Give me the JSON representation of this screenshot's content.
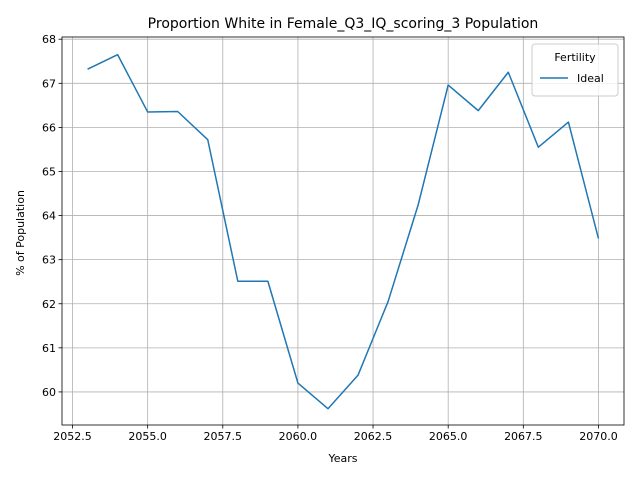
{
  "chart_data": {
    "type": "line",
    "title": "Proportion White in Female_Q3_IQ_scoring_3 Population",
    "xlabel": "Years",
    "ylabel": "% of Population",
    "xlim": [
      2052.15,
      2070.85
    ],
    "ylim": [
      59.25,
      68.05
    ],
    "xticks": [
      2052.5,
      2055.0,
      2057.5,
      2060.0,
      2062.5,
      2065.0,
      2067.5,
      2070.0
    ],
    "xtick_labels": [
      "2052.5",
      "2055.0",
      "2057.5",
      "2060.0",
      "2062.5",
      "2065.0",
      "2067.5",
      "2070.0"
    ],
    "yticks": [
      60,
      61,
      62,
      63,
      64,
      65,
      66,
      67,
      68
    ],
    "ytick_labels": [
      "60",
      "61",
      "62",
      "63",
      "64",
      "65",
      "66",
      "67",
      "68"
    ],
    "grid": true,
    "legend": {
      "title": "Fertility",
      "position": "top-right"
    },
    "series": [
      {
        "name": "Ideal",
        "color": "#1f77b4",
        "x": [
          2053,
          2054,
          2055,
          2056,
          2057,
          2058,
          2059,
          2060,
          2061,
          2062,
          2063,
          2064,
          2065,
          2066,
          2067,
          2068,
          2069,
          2070
        ],
        "y": [
          67.32,
          67.65,
          66.35,
          66.36,
          65.72,
          62.51,
          62.51,
          60.2,
          59.62,
          60.38,
          62.05,
          64.24,
          66.96,
          66.38,
          67.25,
          65.55,
          66.12,
          63.48
        ]
      }
    ]
  }
}
